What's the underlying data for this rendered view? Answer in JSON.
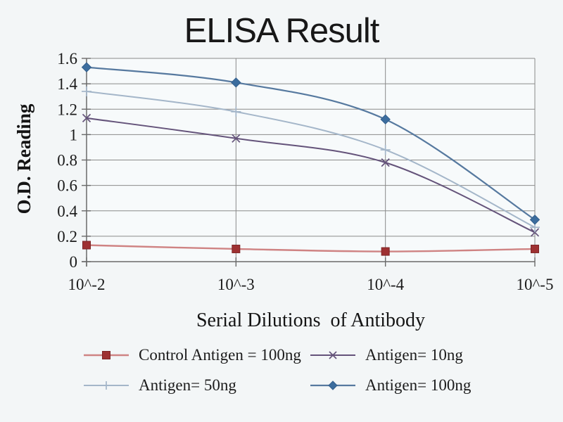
{
  "title": "ELISA Result",
  "chart_data": {
    "type": "line",
    "smooth": true,
    "title": "ELISA Result",
    "xlabel": "Serial Dilutions  of Antibody",
    "ylabel": "O.D. Reading",
    "categories": [
      "10^-2",
      "10^-3",
      "10^-4",
      "10^-5"
    ],
    "ylim": [
      0,
      1.6
    ],
    "yticks": [
      "0",
      "0.2",
      "0.4",
      "0.6",
      "0.8",
      "1",
      "1.2",
      "1.4",
      "1.6"
    ],
    "grid": true,
    "legend_position": "bottom",
    "series": [
      {
        "name": "Control Antigen = 100ng",
        "marker": "square",
        "line_color": "#cf8383",
        "marker_color": "#9e3132",
        "marker_edge": "#7c2425",
        "line_width": 2.4,
        "values": [
          0.13,
          0.1,
          0.08,
          0.1
        ]
      },
      {
        "name": "Antigen= 10ng",
        "marker": "x",
        "line_color": "#64537a",
        "marker_color": "#64537a",
        "marker_edge": "#64537a",
        "line_width": 2,
        "values": [
          1.13,
          0.97,
          0.78,
          0.23
        ]
      },
      {
        "name": "Antigen= 50ng",
        "marker": "plus",
        "line_color": "#a4b6c9",
        "marker_color": "#a4b6c9",
        "marker_edge": "#a4b6c9",
        "line_width": 2,
        "values": [
          1.34,
          1.18,
          0.88,
          0.27
        ]
      },
      {
        "name": "Antigen= 100ng",
        "marker": "diamond",
        "line_color": "#56799f",
        "marker_color": "#3c6d9e",
        "marker_edge": "#335f8c",
        "line_width": 2.2,
        "values": [
          1.53,
          1.41,
          1.12,
          0.33
        ]
      }
    ]
  },
  "colors": {
    "background": "#f3f6f7",
    "plot_fill": "#f7fafb",
    "gridline": "#8a8a8a",
    "axis": "#6a6a6a",
    "text": "#1b1b1b"
  }
}
